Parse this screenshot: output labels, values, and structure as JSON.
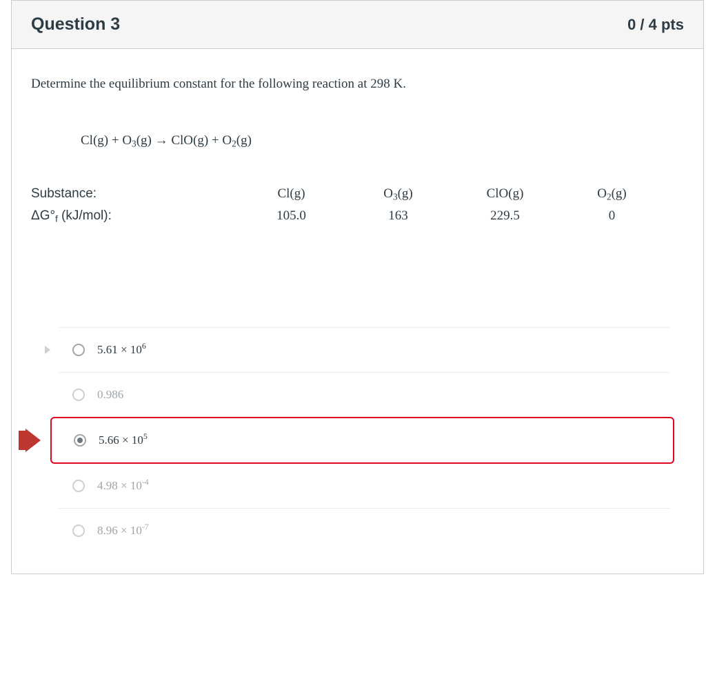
{
  "header": {
    "title": "Question 3",
    "points": "0 / 4 pts"
  },
  "prompt": "Determine the equilibrium constant for the following reaction at 298 K.",
  "equation_html": "Cl(g) + O<sub>3</sub>(g) → ClO(g) + O<sub>2</sub>(g)",
  "table": {
    "row_labels": {
      "substance": "Substance:",
      "dgf_html": "ΔG°<sub>f</sub> (kJ/mol):"
    },
    "columns": [
      {
        "name_html": "Cl(g)",
        "dgf": "105.0"
      },
      {
        "name_html": "O<sub>3</sub>(g)",
        "dgf": "163"
      },
      {
        "name_html": "ClO(g)",
        "dgf": "229.5"
      },
      {
        "name_html": "O<sub>2</sub>(g)",
        "dgf": "0"
      }
    ]
  },
  "answers": [
    {
      "text_html": "5.61 × 10<sup>6</sup>",
      "selected": false,
      "marked_wrong": false,
      "faded": false,
      "show_nub": true
    },
    {
      "text_html": "0.986",
      "selected": false,
      "marked_wrong": false,
      "faded": true,
      "show_nub": false
    },
    {
      "text_html": "5.66 × 10<sup>5</sup>",
      "selected": true,
      "marked_wrong": true,
      "faded": false,
      "show_nub": false
    },
    {
      "text_html": "4.98 × 10<sup>-4</sup>",
      "selected": false,
      "marked_wrong": false,
      "faded": true,
      "show_nub": false
    },
    {
      "text_html": "8.96 × 10<sup>-7</sup>",
      "selected": false,
      "marked_wrong": false,
      "faded": true,
      "show_nub": false
    }
  ],
  "indicator_text": "r",
  "colors": {
    "card_border": "#c7cdd1",
    "header_bg": "#f5f5f5",
    "text": "#2d3b45",
    "faded_text": "#9fa5aa",
    "wrong_border": "#e0061f",
    "indicator_bg": "#bd362f",
    "divider": "#eeeeee"
  }
}
